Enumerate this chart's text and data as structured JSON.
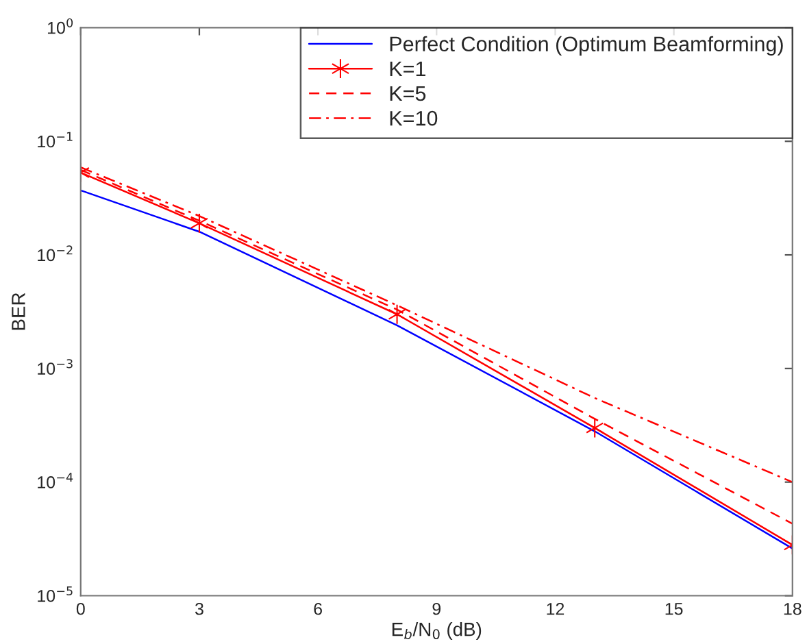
{
  "chart_data": {
    "type": "line",
    "xlabel": "E$_{b}$/N$_{0}$ (dB)",
    "ylabel": "BER",
    "log": "y",
    "xlim": [
      0,
      18
    ],
    "xticks": [
      0,
      3,
      6,
      9,
      12,
      15,
      18
    ],
    "ylim": [
      1e-05,
      1
    ],
    "yticks": [
      {
        "value": 1e-05,
        "label": "10$^{−5}$"
      },
      {
        "value": 0.0001,
        "label": "10$^{−4}$"
      },
      {
        "value": 0.001,
        "label": "10$^{−3}$"
      },
      {
        "value": 0.01,
        "label": "10$^{−2}$"
      },
      {
        "value": 0.1,
        "label": "10$^{−1}$"
      },
      {
        "value": 1,
        "label": "10$^{0}$"
      }
    ],
    "grid": false,
    "legend": "top right",
    "series": [
      {
        "name": "Perfect Condition (Optimum Beamforming)",
        "color": "#0000ff",
        "x": [
          0,
          3,
          8,
          13,
          18
        ],
        "values": [
          0.037,
          0.016,
          0.0024,
          0.00028,
          2.6e-05
        ],
        "line_style": "solid",
        "marker": "none"
      },
      {
        "name": "K=1",
        "color": "#ff0000",
        "x": [
          0,
          3,
          8,
          13,
          18
        ],
        "values": [
          0.053,
          0.019,
          0.003,
          0.0003,
          2.8e-05
        ],
        "line_style": "solid",
        "marker": "cross"
      },
      {
        "name": "K=5",
        "color": "#ff0000",
        "x": [
          0,
          3,
          8,
          13,
          18
        ],
        "values": [
          0.056,
          0.02,
          0.0033,
          0.00036,
          4.3e-05
        ],
        "line_style": "dashed",
        "marker": "none"
      },
      {
        "name": "K=10",
        "color": "#ff0000",
        "x": [
          0,
          3,
          8,
          13,
          18
        ],
        "values": [
          0.059,
          0.022,
          0.0036,
          0.00055,
          0.0001
        ],
        "line_style": "dashdot",
        "marker": "none"
      }
    ]
  }
}
